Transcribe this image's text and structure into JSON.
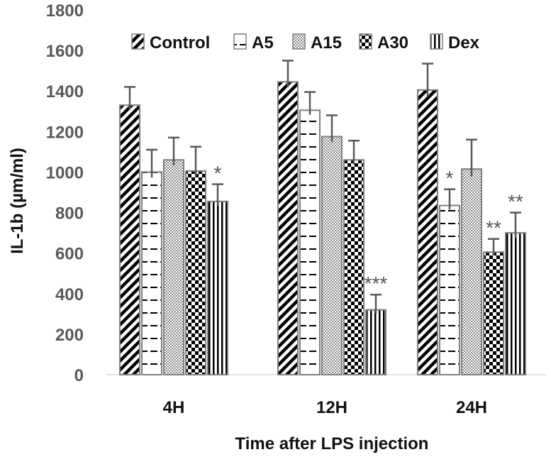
{
  "chart_data": {
    "type": "bar",
    "title": "",
    "xlabel": "Time after LPS injection",
    "ylabel": "IL-1b (µm/ml)",
    "ylim": [
      0,
      1800
    ],
    "yticks": [
      0,
      200,
      400,
      600,
      800,
      1000,
      1200,
      1400,
      1600,
      1800
    ],
    "categories": [
      "4H",
      "12H",
      "24H"
    ],
    "legend_position": "top",
    "series": [
      {
        "name": "Control",
        "pattern": "diagonal",
        "values": [
          1330,
          1445,
          1405
        ],
        "errors": [
          90,
          105,
          130
        ],
        "significance": [
          "",
          "",
          ""
        ]
      },
      {
        "name": "A5",
        "pattern": "dashes",
        "values": [
          1000,
          1305,
          835
        ],
        "errors": [
          110,
          90,
          80
        ],
        "significance": [
          "",
          "",
          "*"
        ]
      },
      {
        "name": "A15",
        "pattern": "dots",
        "values": [
          1060,
          1175,
          1015
        ],
        "errors": [
          110,
          105,
          145
        ],
        "significance": [
          "",
          "",
          ""
        ]
      },
      {
        "name": "A30",
        "pattern": "checker",
        "values": [
          1005,
          1060,
          605
        ],
        "errors": [
          120,
          95,
          65
        ],
        "significance": [
          "",
          "",
          "**"
        ]
      },
      {
        "name": "Dex",
        "pattern": "vertical",
        "values": [
          855,
          320,
          700
        ],
        "errors": [
          85,
          75,
          100
        ],
        "significance": [
          "*",
          "***",
          "**"
        ]
      }
    ]
  }
}
